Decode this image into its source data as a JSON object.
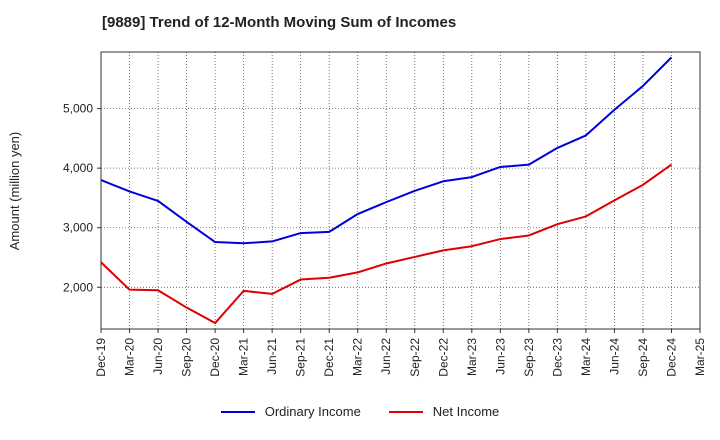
{
  "chart_data": {
    "type": "line",
    "title": "[9889]  Trend of 12-Month Moving Sum of Incomes",
    "xlabel": "",
    "ylabel": "Amount (million yen)",
    "ylim": [
      1300,
      5950
    ],
    "yticks": [
      2000,
      3000,
      4000,
      5000
    ],
    "ytick_labels": [
      "2,000",
      "3,000",
      "4,000",
      "5,000"
    ],
    "grid": true,
    "legend_position": "bottom-center",
    "x": [
      "Dec-19",
      "Mar-20",
      "Jun-20",
      "Sep-20",
      "Dec-20",
      "Mar-21",
      "Jun-21",
      "Sep-21",
      "Dec-21",
      "Mar-22",
      "Jun-22",
      "Sep-22",
      "Dec-22",
      "Mar-23",
      "Jun-23",
      "Sep-23",
      "Dec-23",
      "Mar-24",
      "Jun-24",
      "Sep-24",
      "Dec-24",
      "Mar-25"
    ],
    "series": [
      {
        "name": "Ordinary Income",
        "color": "#0000dd",
        "values": [
          3800,
          3610,
          3450,
          3100,
          2760,
          2740,
          2770,
          2910,
          2930,
          3230,
          3430,
          3620,
          3780,
          3850,
          4020,
          4060,
          4340,
          4550,
          4980,
          5380,
          5860,
          null
        ]
      },
      {
        "name": "Net Income",
        "color": "#dd0000",
        "values": [
          2420,
          1960,
          1950,
          1660,
          1400,
          1940,
          1890,
          2130,
          2160,
          2250,
          2400,
          2510,
          2620,
          2690,
          2810,
          2870,
          3060,
          3190,
          3460,
          3720,
          4060,
          null
        ]
      }
    ]
  }
}
